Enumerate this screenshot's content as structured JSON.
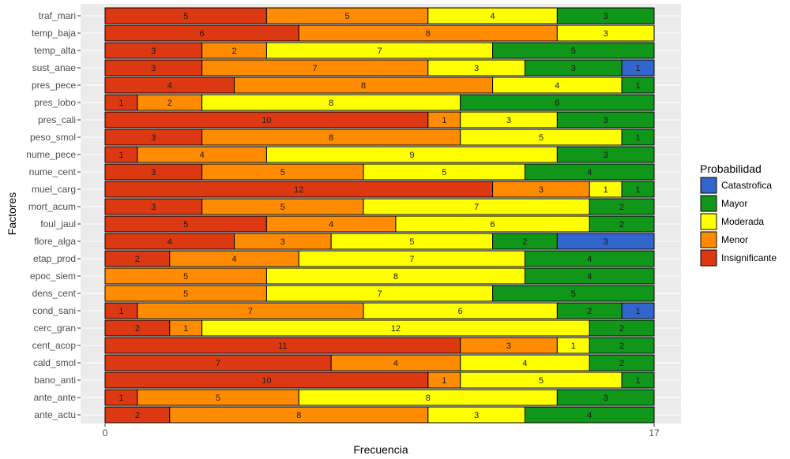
{
  "chart_data": {
    "type": "bar",
    "orientation": "horizontal",
    "stacked": true,
    "xlabel": "Frecuencia",
    "ylabel": "Factores",
    "xlim": [
      0,
      17
    ],
    "xticks": [
      0,
      17
    ],
    "grid": true,
    "legend": {
      "title": "Probabilidad",
      "position": "right",
      "entries": [
        "Catastrofica",
        "Mayor",
        "Moderada",
        "Menor",
        "Insignificante"
      ]
    },
    "colors": {
      "Insignificante": "#dc3912",
      "Menor": "#ff8c00",
      "Moderada": "#ffff00",
      "Mayor": "#109618",
      "Catastrofica": "#3366cc"
    },
    "stack_order": [
      "Insignificante",
      "Menor",
      "Moderada",
      "Mayor",
      "Catastrofica"
    ],
    "categories": [
      "traf_mari",
      "temp_baja",
      "temp_alta",
      "sust_anae",
      "pres_pece",
      "pres_lobo",
      "pres_cali",
      "peso_smol",
      "nume_pece",
      "nume_cent",
      "muel_carg",
      "mort_acum",
      "foul_jaul",
      "flore_alga",
      "etap_prod",
      "epoc_siem",
      "dens_cent",
      "cond_sani",
      "cerc_gran",
      "cent_acop",
      "cald_smol",
      "bano_anti",
      "ante_ante",
      "ante_actu"
    ],
    "series": [
      {
        "name": "Insignificante",
        "values": [
          5,
          6,
          3,
          3,
          4,
          1,
          10,
          3,
          1,
          3,
          12,
          3,
          5,
          4,
          2,
          0,
          0,
          1,
          2,
          11,
          7,
          10,
          1,
          2
        ]
      },
      {
        "name": "Menor",
        "values": [
          5,
          8,
          2,
          7,
          8,
          2,
          1,
          8,
          4,
          5,
          3,
          5,
          4,
          3,
          4,
          5,
          5,
          7,
          1,
          3,
          4,
          1,
          5,
          8
        ]
      },
      {
        "name": "Moderada",
        "values": [
          4,
          3,
          7,
          3,
          4,
          8,
          3,
          5,
          9,
          5,
          1,
          7,
          6,
          5,
          7,
          8,
          7,
          6,
          12,
          1,
          4,
          5,
          8,
          3
        ]
      },
      {
        "name": "Mayor",
        "values": [
          3,
          0,
          5,
          3,
          1,
          6,
          3,
          1,
          3,
          4,
          1,
          2,
          2,
          2,
          4,
          4,
          5,
          2,
          2,
          2,
          2,
          1,
          3,
          4
        ]
      },
      {
        "name": "Catastrofica",
        "values": [
          0,
          0,
          0,
          1,
          0,
          0,
          0,
          0,
          0,
          0,
          0,
          0,
          0,
          3,
          0,
          0,
          0,
          1,
          0,
          0,
          0,
          0,
          0,
          0
        ]
      }
    ]
  }
}
